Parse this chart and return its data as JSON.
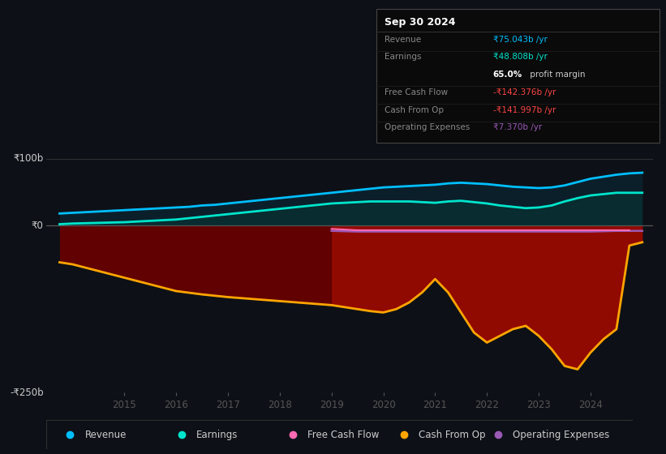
{
  "bg_color": "#0d1117",
  "y_label_top": "₹100b",
  "y_label_zero": "₹0",
  "y_label_bottom": "-₹250b",
  "ylim": [
    -250,
    120
  ],
  "xlim_start": 2013.5,
  "xlim_end": 2025.2,
  "xticks": [
    2015,
    2016,
    2017,
    2018,
    2019,
    2020,
    2021,
    2022,
    2023,
    2024
  ],
  "revenue_color": "#00bfff",
  "earnings_color": "#00e5cc",
  "free_cash_flow_color": "#ff69b4",
  "cash_from_op_color": "#ffa500",
  "operating_expenses_color": "#9b59b6",
  "info_box_title": "Sep 30 2024",
  "legend_items": [
    {
      "label": "Revenue",
      "color": "#00bfff"
    },
    {
      "label": "Earnings",
      "color": "#00e5cc"
    },
    {
      "label": "Free Cash Flow",
      "color": "#ff69b4"
    },
    {
      "label": "Cash From Op",
      "color": "#ffa500"
    },
    {
      "label": "Operating Expenses",
      "color": "#9b59b6"
    }
  ],
  "revenue_x": [
    2013.75,
    2014.0,
    2014.25,
    2014.5,
    2014.75,
    2015.0,
    2015.25,
    2015.5,
    2015.75,
    2016.0,
    2016.25,
    2016.5,
    2016.75,
    2017.0,
    2017.25,
    2017.5,
    2017.75,
    2018.0,
    2018.25,
    2018.5,
    2018.75,
    2019.0,
    2019.25,
    2019.5,
    2019.75,
    2020.0,
    2020.25,
    2020.5,
    2020.75,
    2021.0,
    2021.25,
    2021.5,
    2021.75,
    2022.0,
    2022.25,
    2022.5,
    2022.75,
    2023.0,
    2023.25,
    2023.5,
    2023.75,
    2024.0,
    2024.25,
    2024.5,
    2024.75,
    2025.0
  ],
  "revenue_y": [
    18,
    19,
    20,
    21,
    22,
    23,
    24,
    25,
    26,
    27,
    28,
    30,
    31,
    33,
    35,
    37,
    39,
    41,
    43,
    45,
    47,
    49,
    51,
    53,
    55,
    57,
    58,
    59,
    60,
    61,
    63,
    64,
    63,
    62,
    60,
    58,
    57,
    56,
    57,
    60,
    65,
    70,
    73,
    76,
    78,
    79
  ],
  "earnings_x": [
    2013.75,
    2014.0,
    2014.25,
    2014.5,
    2014.75,
    2015.0,
    2015.25,
    2015.5,
    2015.75,
    2016.0,
    2016.25,
    2016.5,
    2016.75,
    2017.0,
    2017.25,
    2017.5,
    2017.75,
    2018.0,
    2018.25,
    2018.5,
    2018.75,
    2019.0,
    2019.25,
    2019.5,
    2019.75,
    2020.0,
    2020.25,
    2020.5,
    2020.75,
    2021.0,
    2021.25,
    2021.5,
    2021.75,
    2022.0,
    2022.25,
    2022.5,
    2022.75,
    2023.0,
    2023.25,
    2023.5,
    2023.75,
    2024.0,
    2024.25,
    2024.5,
    2024.75,
    2025.0
  ],
  "earnings_y": [
    2,
    3,
    3.5,
    4,
    4.5,
    5,
    6,
    7,
    8,
    9,
    11,
    13,
    15,
    17,
    19,
    21,
    23,
    25,
    27,
    29,
    31,
    33,
    34,
    35,
    36,
    36,
    36,
    36,
    35,
    34,
    36,
    37,
    35,
    33,
    30,
    28,
    26,
    27,
    30,
    36,
    41,
    45,
    47,
    49,
    49,
    49
  ],
  "cash_from_op_x": [
    2013.75,
    2014.0,
    2014.25,
    2014.5,
    2014.75,
    2015.0,
    2015.25,
    2015.5,
    2015.75,
    2016.0,
    2016.5,
    2017.0,
    2017.5,
    2018.0,
    2018.5,
    2019.0,
    2019.25,
    2019.5,
    2019.75,
    2020.0,
    2020.25,
    2020.5,
    2020.75,
    2021.0,
    2021.25,
    2021.5,
    2021.75,
    2022.0,
    2022.25,
    2022.5,
    2022.75,
    2023.0,
    2023.25,
    2023.5,
    2023.75,
    2024.0,
    2024.25,
    2024.5,
    2024.75,
    2025.0
  ],
  "cash_from_op_y": [
    -55,
    -58,
    -63,
    -68,
    -73,
    -78,
    -83,
    -88,
    -93,
    -98,
    -103,
    -107,
    -110,
    -113,
    -116,
    -119,
    -122,
    -125,
    -128,
    -130,
    -125,
    -115,
    -100,
    -80,
    -100,
    -130,
    -160,
    -175,
    -165,
    -155,
    -150,
    -165,
    -185,
    -210,
    -215,
    -190,
    -170,
    -155,
    -30,
    -25
  ],
  "free_cash_flow_x": [
    2019.0,
    2019.5,
    2020.0,
    2020.5,
    2021.0,
    2021.5,
    2022.0,
    2022.5,
    2023.0,
    2023.5,
    2024.0,
    2024.5,
    2024.75
  ],
  "free_cash_flow_y": [
    -5,
    -7,
    -7,
    -7,
    -7,
    -7,
    -7,
    -7,
    -7,
    -7,
    -7,
    -7,
    -7
  ],
  "operating_expenses_x": [
    2019.0,
    2019.5,
    2020.0,
    2020.5,
    2021.0,
    2021.5,
    2022.0,
    2022.5,
    2023.0,
    2023.5,
    2024.0,
    2024.5,
    2024.75,
    2025.0
  ],
  "operating_expenses_y": [
    -8,
    -9,
    -9,
    -9,
    -9,
    -9,
    -9,
    -9,
    -9,
    -9,
    -9,
    -8,
    -8,
    -8
  ]
}
